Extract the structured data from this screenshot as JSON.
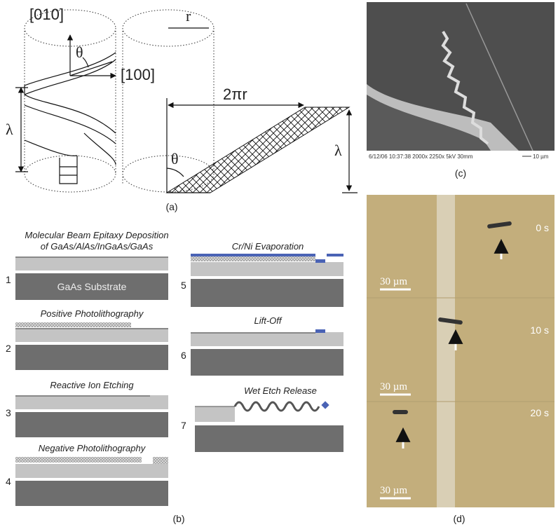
{
  "panel_a": {
    "labels": {
      "axis_y": "[010]",
      "axis_x": "[100]",
      "radius": "r",
      "theta_top": "θ",
      "pitch_left": "λ",
      "circumference": "2πr",
      "pitch_right": "λ",
      "theta_bottom": "θ"
    },
    "caption": "(a)"
  },
  "panel_b": {
    "title_lines": [
      "Molecular Beam Epitaxy Deposition",
      "of GaAs/AlAs/InGaAs/GaAs"
    ],
    "substrate_label": "GaAs Substrate",
    "steps": [
      {
        "number": "1"
      },
      {
        "number": "2",
        "label": "Positive Photolithography"
      },
      {
        "number": "3",
        "label": "Reactive Ion Etching"
      },
      {
        "number": "4",
        "label": "Negative Photolithography"
      },
      {
        "number": "5",
        "label": "Cr/Ni Evaporation"
      },
      {
        "number": "6",
        "label": "Lift-Off"
      },
      {
        "number": "7",
        "label": "Wet Etch Release"
      }
    ],
    "caption": "(b)"
  },
  "panel_c": {
    "info": "6/12/06 10:37:38 2000x 2250x 5kV 30mm",
    "scale": "10 µm",
    "caption": "(c)"
  },
  "panel_d": {
    "frames": [
      {
        "time": "0 s",
        "scale": "30 µm"
      },
      {
        "time": "10 s",
        "scale": "30 µm"
      },
      {
        "time": "20 s",
        "scale": "30 µm"
      }
    ],
    "caption": "(d)"
  }
}
